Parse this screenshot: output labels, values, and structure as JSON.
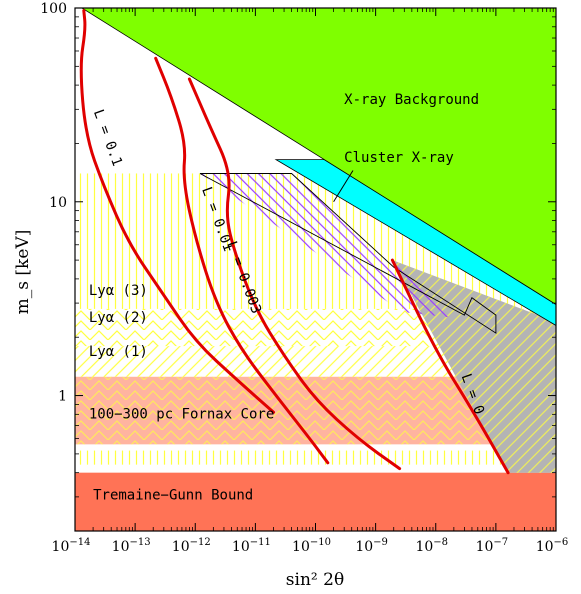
{
  "chart_data": {
    "type": "area",
    "title": "",
    "xlabel": "sin² 2θ",
    "ylabel": "m_s [keV]",
    "xscale": "log",
    "yscale": "log",
    "xlim": [
      1e-14,
      1e-06
    ],
    "ylim": [
      0.2,
      100
    ],
    "grid": false,
    "x_ticks": [
      {
        "base": "10",
        "exp": "−14",
        "value": 1e-14
      },
      {
        "base": "10",
        "exp": "−13",
        "value": 1e-13
      },
      {
        "base": "10",
        "exp": "−12",
        "value": 1e-12
      },
      {
        "base": "10",
        "exp": "−11",
        "value": 1e-11
      },
      {
        "base": "10",
        "exp": "−10",
        "value": 1e-10
      },
      {
        "base": "10",
        "exp": "−9",
        "value": 1e-09
      },
      {
        "base": "10",
        "exp": "−8",
        "value": 1e-08
      },
      {
        "base": "10",
        "exp": "−7",
        "value": 1e-07
      },
      {
        "base": "10",
        "exp": "−6",
        "value": 1e-06
      }
    ],
    "y_ticks": [
      {
        "label": "1",
        "value": 1
      },
      {
        "label": "10",
        "value": 10
      },
      {
        "label": "100",
        "value": 100
      }
    ],
    "colors": {
      "xray_background": "#7fff00",
      "cluster_xray": "#00ffff",
      "tremaine_gunn": "#ff7356",
      "fornax": "#ffb4a0",
      "lya": "#ffff40",
      "excluded_gray": "#b4b4b4",
      "hatch_purple": "#9a3cff",
      "curve_red": "#e00000"
    },
    "regions": [
      {
        "name": "X-ray Background",
        "label": "X-ray Background",
        "label_x": 3e-10,
        "label_y": 32
      },
      {
        "name": "Cluster X-ray",
        "label": "Cluster X-ray",
        "label_x": 3e-10,
        "label_y": 16
      },
      {
        "name": "Lya (3)",
        "label": "Lyα (3)",
        "label_x": 1.7e-14,
        "label_y": 3.3
      },
      {
        "name": "Lya (2)",
        "label": "Lyα (2)",
        "label_x": 1.7e-14,
        "label_y": 2.4
      },
      {
        "name": "Lya (1)",
        "label": "Lyα (1)",
        "label_x": 1.7e-14,
        "label_y": 1.6
      },
      {
        "name": "Fornax Core",
        "label": "100−300 pc Fornax Core",
        "label_x": 1.7e-14,
        "label_y": 0.76
      },
      {
        "name": "Tremaine-Gunn",
        "label": "Tremaine−Gunn Bound",
        "label_x": 2e-14,
        "label_y": 0.29
      }
    ],
    "series": [
      {
        "name": "L = 0.1",
        "label": "L = 0.1",
        "label_x": 3e-14,
        "label_y": 21,
        "x": [
          1.4e-14,
          1.5e-14,
          1.2e-14,
          1.5e-14,
          3e-14,
          8e-14,
          3e-13,
          1e-12,
          5e-12,
          2e-11
        ],
        "y": [
          97,
          78,
          50,
          22,
          12,
          6,
          3.3,
          1.9,
          1.2,
          0.82
        ]
      },
      {
        "name": "L = 0.01",
        "label": "L = 0.01",
        "label_x": 2e-12,
        "label_y": 8,
        "x": [
          2.2e-13,
          4e-13,
          7e-13,
          6.2e-13,
          1e-12,
          2.2e-12,
          6e-12,
          2.2e-11,
          8e-11,
          1.6e-10
        ],
        "y": [
          55,
          35,
          20,
          13,
          6.5,
          3,
          1.7,
          1,
          0.6,
          0.45
        ]
      },
      {
        "name": "L = 0.003",
        "label": "L = 0.003",
        "label_x": 5.5e-12,
        "label_y": 4,
        "x": [
          8e-13,
          1.7e-12,
          4e-12,
          3.2e-12,
          4.5e-12,
          1e-11,
          3e-11,
          1e-10,
          5e-10,
          2.5e-09
        ],
        "y": [
          43,
          25,
          14,
          8.5,
          5.5,
          2.8,
          1.6,
          0.95,
          0.6,
          0.42
        ]
      },
      {
        "name": "L = 0",
        "label": "L = 0",
        "label_x": 3.5e-08,
        "label_y": 1.0,
        "x": [
          1.9e-09,
          1e-08,
          4e-08,
          1.6e-07
        ],
        "y": [
          5,
          1.7,
          0.85,
          0.4
        ]
      }
    ]
  }
}
